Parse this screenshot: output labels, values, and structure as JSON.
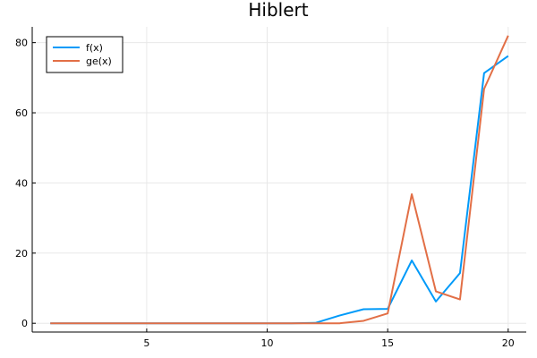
{
  "chart_data": {
    "type": "line",
    "title": "Hiblert",
    "xlabel": "",
    "ylabel": "",
    "xlim": [
      0.25,
      20.75
    ],
    "ylim": [
      -2.5,
      84.5
    ],
    "xticks": [
      5,
      10,
      15,
      20
    ],
    "yticks": [
      0,
      20,
      40,
      60,
      80
    ],
    "grid": true,
    "legend_position": "top-left",
    "x": [
      1,
      2,
      3,
      4,
      5,
      6,
      7,
      8,
      9,
      10,
      11,
      12,
      13,
      14,
      15,
      16,
      17,
      18,
      19,
      20
    ],
    "series": [
      {
        "name": "f(x)",
        "color": "#009af9",
        "values": [
          0,
          0,
          0,
          0,
          0,
          0,
          0,
          0,
          0,
          0,
          0,
          0.1,
          2.2,
          4.0,
          4.1,
          17.9,
          6.2,
          14.3,
          71.3,
          76.2
        ]
      },
      {
        "name": "ge(x)",
        "color": "#e26f46",
        "values": [
          0,
          0,
          0,
          0,
          0,
          0,
          0,
          0,
          0,
          0,
          0,
          0,
          0,
          0.7,
          2.8,
          36.8,
          9.1,
          6.8,
          66.8,
          82.0
        ]
      }
    ]
  }
}
